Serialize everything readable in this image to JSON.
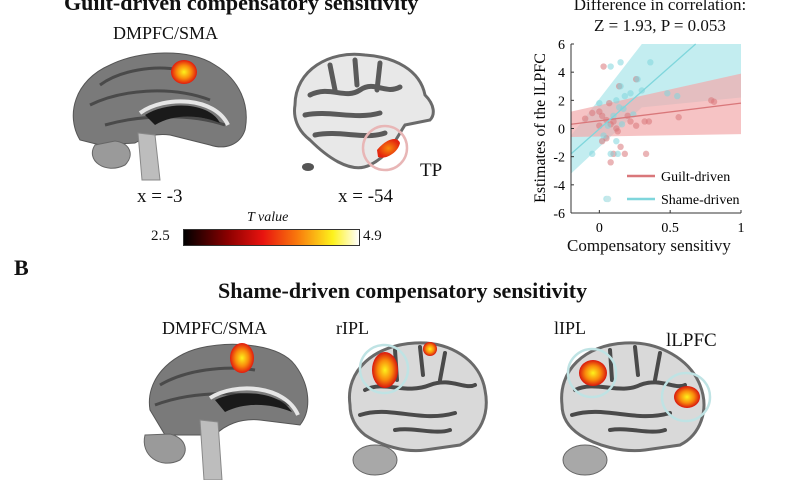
{
  "panel_a": {
    "title": "Guilt-driven compensatory sensitivity",
    "brains": [
      {
        "label": "DMPFC/SMA",
        "coord": "x = -3",
        "view": "medial sagittal"
      },
      {
        "label": "TP",
        "coord": "x = -54",
        "view": "lateral sagittal"
      }
    ],
    "colorbar": {
      "title": "T value",
      "min": "2.5",
      "max": "4.9",
      "colors": [
        "#000000",
        "#8b0000",
        "#e8130f",
        "#f97b0c",
        "#fdf21c",
        "#ffffff"
      ]
    }
  },
  "panel_b": {
    "letter": "B",
    "title": "Shame-driven compensatory sensitivity",
    "brains": [
      {
        "label": "DMPFC/SMA"
      },
      {
        "label": "rIPL"
      },
      {
        "label": "lIPL"
      },
      {
        "label": "lLPFC"
      }
    ]
  },
  "chart_data": {
    "type": "scatter",
    "title": "Difference in correlation:",
    "subtitle": "Z = 1.93, P = 0.053",
    "xlabel": "Compensatory sensitivy",
    "ylabel": "Estimates of the lLPFC",
    "xlim": [
      -0.2,
      1.0
    ],
    "ylim": [
      -6,
      6
    ],
    "xticks": [
      "0",
      "0.5",
      "1"
    ],
    "yticks": [
      "6",
      "4",
      "2",
      "0",
      "-2",
      "-4",
      "-6"
    ],
    "grid": false,
    "legend_position": "lower right",
    "series": [
      {
        "name": "Guilt-driven",
        "color": "#d9777a",
        "band_color": "#f2a9ab",
        "fit_line": {
          "x": [
            -0.2,
            1.0
          ],
          "y": [
            0.3,
            1.8
          ]
        },
        "points": [
          {
            "x": 0.03,
            "y": 4.4
          },
          {
            "x": -0.1,
            "y": 0.7
          },
          {
            "x": -0.05,
            "y": 1.1
          },
          {
            "x": 0.0,
            "y": 1.2
          },
          {
            "x": 0.02,
            "y": 0.9
          },
          {
            "x": 0.05,
            "y": 0.6
          },
          {
            "x": 0.08,
            "y": 0.3
          },
          {
            "x": 0.1,
            "y": 0.5
          },
          {
            "x": 0.12,
            "y": 0.0
          },
          {
            "x": 0.13,
            "y": -0.2
          },
          {
            "x": 0.14,
            "y": 3.0
          },
          {
            "x": 0.07,
            "y": 1.8
          },
          {
            "x": 0.15,
            "y": -1.3
          },
          {
            "x": 0.1,
            "y": -1.8
          },
          {
            "x": 0.18,
            "y": -1.8
          },
          {
            "x": 0.08,
            "y": -2.4
          },
          {
            "x": 0.02,
            "y": -0.9
          },
          {
            "x": 0.05,
            "y": -0.7
          },
          {
            "x": 0.26,
            "y": 3.5
          },
          {
            "x": 0.22,
            "y": 0.5
          },
          {
            "x": 0.32,
            "y": 0.5
          },
          {
            "x": 0.35,
            "y": 0.5
          },
          {
            "x": 0.56,
            "y": 0.8
          },
          {
            "x": 0.79,
            "y": 2.0
          },
          {
            "x": 0.81,
            "y": 1.9
          },
          {
            "x": 0.33,
            "y": -1.8
          },
          {
            "x": 0.26,
            "y": 0.2
          },
          {
            "x": 0.2,
            "y": 0.9
          },
          {
            "x": 0.0,
            "y": 0.2
          }
        ]
      },
      {
        "name": "Shame-driven",
        "color": "#7fd6dc",
        "band_color": "#a9e6ea",
        "fit_line": {
          "x": [
            -0.2,
            0.68
          ],
          "y": [
            -1.8,
            6.0
          ]
        },
        "points": [
          {
            "x": 0.08,
            "y": 4.4
          },
          {
            "x": 0.15,
            "y": 4.7
          },
          {
            "x": 0.36,
            "y": 4.7
          },
          {
            "x": 0.27,
            "y": 3.5
          },
          {
            "x": 0.15,
            "y": 3.0
          },
          {
            "x": 0.0,
            "y": 1.8
          },
          {
            "x": 0.12,
            "y": 2.0
          },
          {
            "x": 0.18,
            "y": 2.3
          },
          {
            "x": 0.22,
            "y": 2.5
          },
          {
            "x": 0.3,
            "y": 2.7
          },
          {
            "x": 0.48,
            "y": 2.5
          },
          {
            "x": 0.55,
            "y": 2.3
          },
          {
            "x": 0.14,
            "y": 1.5
          },
          {
            "x": 0.17,
            "y": 1.4
          },
          {
            "x": 0.1,
            "y": 0.9
          },
          {
            "x": 0.06,
            "y": 0.2
          },
          {
            "x": 0.03,
            "y": -0.5
          },
          {
            "x": 0.12,
            "y": -0.9
          },
          {
            "x": -0.05,
            "y": -1.8
          },
          {
            "x": 0.08,
            "y": -1.8
          },
          {
            "x": 0.13,
            "y": -1.8
          },
          {
            "x": 0.05,
            "y": -5.0
          },
          {
            "x": 0.16,
            "y": 0.3
          },
          {
            "x": 0.24,
            "y": 1.0
          }
        ]
      }
    ]
  }
}
